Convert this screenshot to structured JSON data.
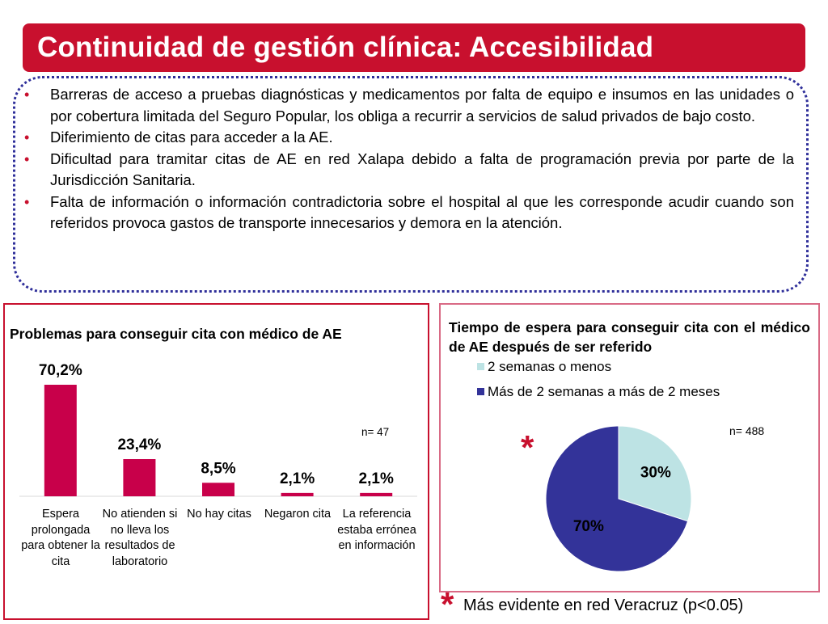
{
  "slide": {
    "title": "Continuidad de gestión clínica: Accesibilidad",
    "bullet_marker": "•",
    "bullets": [
      "Barreras de acceso a pruebas diagnósticas y medicamentos por falta de equipo e insumos en las unidades o por cobertura limitada del Seguro Popular, los obliga a recurrir a servicios de salud privados de bajo costo.",
      "Diferimiento de citas para acceder a la AE.",
      "Dificultad para tramitar citas de AE en red Xalapa debido a falta de programación previa por parte de la Jurisdicción Sanitaria.",
      "Falta de información o información contradictoria sobre el hospital al que les corresponde acudir cuando son referidos provoca gastos de transporte innecesarios y demora en la atención."
    ],
    "footnote_star": "*",
    "footnote": "Más evidente en red Veracruz (p<0.05)"
  },
  "colors": {
    "brand": "#c8102e",
    "bar": "#c8004a",
    "pie_light": "#bde3e4",
    "pie_dark": "#333399"
  },
  "chart_data": [
    {
      "type": "bar",
      "title": "Problemas para conseguir cita con médico de AE",
      "categories": [
        "Espera prolongada para obtener la cita",
        "No atienden si no lleva los resultados de laboratorio",
        "No hay citas",
        "Negaron cita",
        "La referencia estaba errónea en información"
      ],
      "values": [
        70.2,
        23.4,
        8.5,
        2.1,
        2.1
      ],
      "data_labels": [
        "70,2%",
        "23,4%",
        "8,5%",
        "2,1%",
        "2,1%"
      ],
      "annotation": "n= 47",
      "ylim": [
        0,
        70.2
      ],
      "grid": false
    },
    {
      "type": "pie",
      "title": "Tiempo de espera para conseguir cita con el médico de AE después de ser referido",
      "labels": [
        "2 semanas o menos",
        "Más de 2 semanas a más de 2 meses"
      ],
      "values": [
        30,
        70
      ],
      "data_labels": [
        "30%",
        "70%"
      ],
      "annotation": "n= 488",
      "marker": "*",
      "legend": "top"
    }
  ]
}
